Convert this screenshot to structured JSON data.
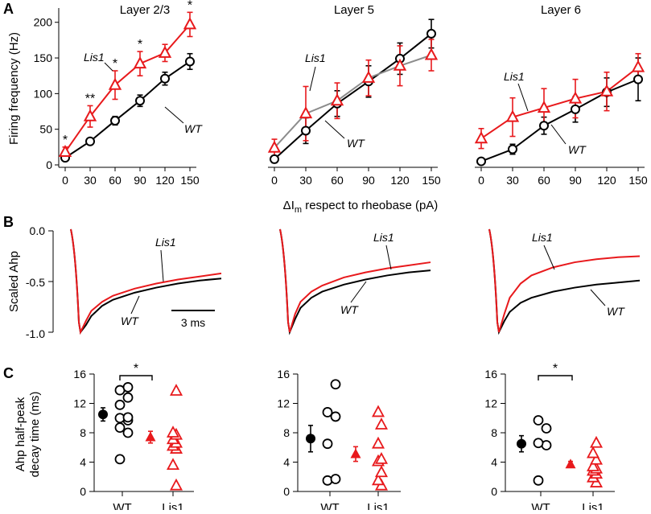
{
  "panel_letters": {
    "a": "A",
    "b": "B",
    "c": "C"
  },
  "colors": {
    "wt": "#000000",
    "lis1": "#e8191c",
    "lis1_gray": "#8c8c8c"
  },
  "row_a": {
    "ylabel": "Firing frequency (Hz)",
    "xlabel_delta": "Δ",
    "xlabel_i": "I",
    "xlabel_sub": "m",
    "xlabel_rest": " respect to rheobase (pA)",
    "label_lis1": "Lis1",
    "label_wt": "WT"
  },
  "row_b": {
    "ylabel": "Scaled Ahp",
    "yticks": [
      "0.0",
      "-0.5",
      "-1.0"
    ],
    "label_lis1": "Lis1",
    "label_wt": "WT",
    "scalebar_label": "3 ms"
  },
  "row_c": {
    "ylabel_line1": "Ahp half-peak",
    "ylabel_line2": "decay time (ms)"
  },
  "chart_data": [
    {
      "type": "line",
      "title": "Layer 2/3",
      "xlabel": "ΔIm respect to rheobase (pA)",
      "ylabel": "Firing frequency (Hz)",
      "x": [
        0,
        30,
        60,
        90,
        120,
        150
      ],
      "xticks": [
        "0",
        "30",
        "60",
        "90",
        "120",
        "150"
      ],
      "yticks": [
        "0",
        "50",
        "100",
        "150",
        "200"
      ],
      "ylim": [
        0,
        220
      ],
      "series": [
        {
          "name": "WT",
          "values": [
            10,
            33,
            62,
            90,
            121,
            145
          ],
          "err": [
            4,
            4,
            6,
            8,
            9,
            11
          ]
        },
        {
          "name": "Lis1",
          "values": [
            18,
            68,
            112,
            142,
            157,
            197
          ],
          "err": [
            7,
            15,
            20,
            17,
            12,
            17
          ]
        }
      ],
      "significance": [
        "*",
        "**",
        "*",
        "*",
        "",
        "*"
      ]
    },
    {
      "type": "line",
      "title": "Layer 5",
      "x": [
        0,
        30,
        60,
        90,
        120,
        150
      ],
      "xticks": [
        "0",
        "30",
        "60",
        "90",
        "120",
        "150"
      ],
      "ylim": [
        0,
        220
      ],
      "series": [
        {
          "name": "WT",
          "values": [
            8,
            48,
            86,
            117,
            149,
            184
          ],
          "err": [
            5,
            18,
            18,
            22,
            22,
            20
          ]
        },
        {
          "name": "Lis1",
          "values": [
            24,
            72,
            90,
            122,
            139,
            154
          ],
          "err": [
            12,
            38,
            25,
            25,
            28,
            22
          ]
        }
      ]
    },
    {
      "type": "line",
      "title": "Layer 6",
      "x": [
        0,
        30,
        60,
        90,
        120,
        150
      ],
      "xticks": [
        "0",
        "30",
        "60",
        "90",
        "120",
        "150"
      ],
      "ylim": [
        0,
        220
      ],
      "series": [
        {
          "name": "WT",
          "values": [
            5,
            22,
            55,
            78,
            102,
            120
          ],
          "err": [
            2,
            7,
            12,
            18,
            20,
            30
          ]
        },
        {
          "name": "Lis1",
          "values": [
            37,
            67,
            80,
            93,
            103,
            137
          ],
          "err": [
            14,
            27,
            27,
            27,
            27,
            19
          ]
        }
      ]
    },
    {
      "type": "scatter",
      "panel": "C left (Layer 2/3)",
      "categories": [
        "WT",
        "Lis1"
      ],
      "yticks": [
        "0",
        "4",
        "8",
        "12",
        "16"
      ],
      "ylim": [
        0,
        16
      ],
      "significance": "*",
      "series": [
        {
          "name": "WT",
          "mean": 10.5,
          "sem": 0.9,
          "points": [
            4.4,
            8.0,
            8.7,
            9.7,
            10.0,
            10.1,
            11.8,
            12.8,
            13.8,
            14.2
          ]
        },
        {
          "name": "Lis1",
          "mean": 7.4,
          "sem": 0.8,
          "points": [
            0.8,
            3.6,
            5.8,
            6.2,
            6.6,
            7.1,
            7.7,
            8.0,
            13.7
          ]
        }
      ]
    },
    {
      "type": "scatter",
      "panel": "C middle (Layer 5)",
      "categories": [
        "WT",
        "Lis1"
      ],
      "yticks": [
        "0",
        "4",
        "8",
        "12",
        "16"
      ],
      "ylim": [
        0,
        16
      ],
      "series": [
        {
          "name": "WT",
          "mean": 7.2,
          "sem": 1.8,
          "points": [
            1.5,
            1.7,
            6.5,
            10.2,
            10.8,
            14.6
          ]
        },
        {
          "name": "Lis1",
          "mean": 5.1,
          "sem": 1.0,
          "points": [
            0.8,
            1.5,
            2.6,
            4.1,
            4.4,
            6.5,
            9.1,
            10.8
          ]
        }
      ]
    },
    {
      "type": "scatter",
      "panel": "C right (Layer 6)",
      "categories": [
        "WT",
        "Lis1"
      ],
      "yticks": [
        "0",
        "4",
        "8",
        "12",
        "16"
      ],
      "ylim": [
        0,
        16
      ],
      "significance": "*",
      "series": [
        {
          "name": "WT",
          "mean": 6.5,
          "sem": 1.1,
          "points": [
            1.5,
            6.3,
            6.6,
            8.6,
            9.7
          ]
        },
        {
          "name": "Lis1",
          "mean": 3.7,
          "sem": 0.4,
          "points": [
            1.2,
            1.9,
            2.4,
            2.8,
            3.1,
            3.4,
            4.3,
            5.2,
            6.6
          ]
        }
      ]
    },
    {
      "type": "line",
      "panel": "B traces",
      "ylabel": "Scaled Ahp",
      "yticks": [
        "0.0",
        "-0.5",
        "-1.0"
      ],
      "ylim": [
        -1.0,
        0.0
      ],
      "time_ms": [
        0,
        0.5,
        1,
        2,
        3,
        5,
        7,
        9,
        11,
        13
      ],
      "traces": [
        {
          "layer": "Layer 2/3",
          "WT": [
            -1.0,
            -0.93,
            -0.84,
            -0.74,
            -0.68,
            -0.61,
            -0.56,
            -0.52,
            -0.49,
            -0.47
          ],
          "Lis1": [
            -1.0,
            -0.89,
            -0.79,
            -0.7,
            -0.64,
            -0.57,
            -0.52,
            -0.48,
            -0.45,
            -0.42
          ]
        },
        {
          "layer": "Layer 5",
          "WT": [
            -1.0,
            -0.87,
            -0.76,
            -0.66,
            -0.6,
            -0.53,
            -0.48,
            -0.44,
            -0.41,
            -0.39
          ],
          "Lis1": [
            -1.0,
            -0.82,
            -0.7,
            -0.6,
            -0.54,
            -0.46,
            -0.41,
            -0.37,
            -0.34,
            -0.31
          ]
        },
        {
          "layer": "Layer 6",
          "WT": [
            -1.0,
            -0.89,
            -0.8,
            -0.71,
            -0.66,
            -0.6,
            -0.56,
            -0.53,
            -0.51,
            -0.49
          ],
          "Lis1": [
            -1.0,
            -0.82,
            -0.66,
            -0.52,
            -0.44,
            -0.36,
            -0.31,
            -0.28,
            -0.26,
            -0.25
          ]
        }
      ]
    }
  ]
}
